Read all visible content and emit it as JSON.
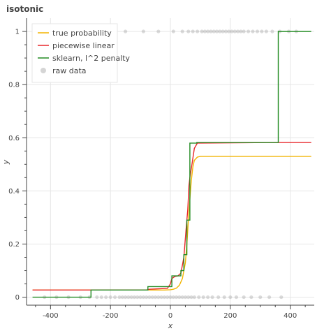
{
  "chart_data": {
    "type": "line",
    "title": "isotonic",
    "xlabel": "x",
    "ylabel": "y",
    "xlim": [
      -480,
      480
    ],
    "ylim": [
      -0.03,
      1.05
    ],
    "grid": true,
    "legend_position": "top-left",
    "x_ticks": [
      "-400",
      "-200",
      "0",
      "200",
      "400"
    ],
    "y_ticks": [
      "0",
      "0.2",
      "0.4",
      "0.6",
      "0.8",
      "1"
    ],
    "series": [
      {
        "name": "true probability",
        "color": "#f2b400",
        "x": [
          -460,
          -100,
          -50,
          -20,
          0,
          10,
          20,
          30,
          40,
          50,
          55,
          60,
          65,
          70,
          75,
          80,
          90,
          100,
          150,
          470
        ],
        "y": [
          0.027,
          0.027,
          0.027,
          0.027,
          0.028,
          0.03,
          0.034,
          0.045,
          0.07,
          0.13,
          0.2,
          0.29,
          0.37,
          0.44,
          0.49,
          0.515,
          0.527,
          0.53,
          0.53,
          0.53
        ]
      },
      {
        "name": "piecewise linear",
        "color": "#e8272a",
        "x": [
          -460,
          -80,
          -70,
          -10,
          0,
          5,
          15,
          25,
          35,
          45,
          52,
          55,
          58,
          62,
          65,
          72,
          80,
          90,
          350,
          470
        ],
        "y": [
          0.027,
          0.027,
          0.03,
          0.033,
          0.05,
          0.07,
          0.078,
          0.08,
          0.09,
          0.15,
          0.25,
          0.29,
          0.33,
          0.42,
          0.45,
          0.5,
          0.56,
          0.58,
          0.582,
          0.582
        ]
      },
      {
        "name": "sklearn, l^2 penalty",
        "color": "#228b22",
        "x": [
          -460,
          -265,
          -265,
          -75,
          -75,
          5,
          5,
          35,
          35,
          45,
          45,
          55,
          55,
          65,
          65,
          88,
          88,
          360,
          360,
          470
        ],
        "y": [
          0.0,
          0.0,
          0.027,
          0.027,
          0.04,
          0.04,
          0.08,
          0.08,
          0.1,
          0.1,
          0.16,
          0.16,
          0.29,
          0.29,
          0.58,
          0.58,
          0.582,
          0.582,
          1.0,
          1.0
        ]
      }
    ],
    "raw_data": {
      "name": "raw data",
      "color": "#888888",
      "y0_x": [
        -420,
        -380,
        -340,
        -300,
        -270,
        -245,
        -230,
        -215,
        -200,
        -185,
        -170,
        -160,
        -150,
        -140,
        -130,
        -120,
        -110,
        -100,
        -90,
        -80,
        -70,
        -60,
        -50,
        -40,
        -30,
        -20,
        -10,
        0,
        10,
        20,
        30,
        40,
        50,
        60,
        70,
        80,
        95,
        110,
        125,
        140,
        160,
        180,
        200,
        220,
        245,
        270,
        300,
        330,
        370
      ],
      "y1_x": [
        -150,
        -90,
        -40,
        10,
        40,
        60,
        75,
        90,
        105,
        115,
        125,
        135,
        145,
        155,
        165,
        175,
        185,
        195,
        205,
        215,
        225,
        235,
        245,
        260,
        275,
        290,
        305,
        320,
        340,
        365,
        395,
        420
      ]
    }
  }
}
